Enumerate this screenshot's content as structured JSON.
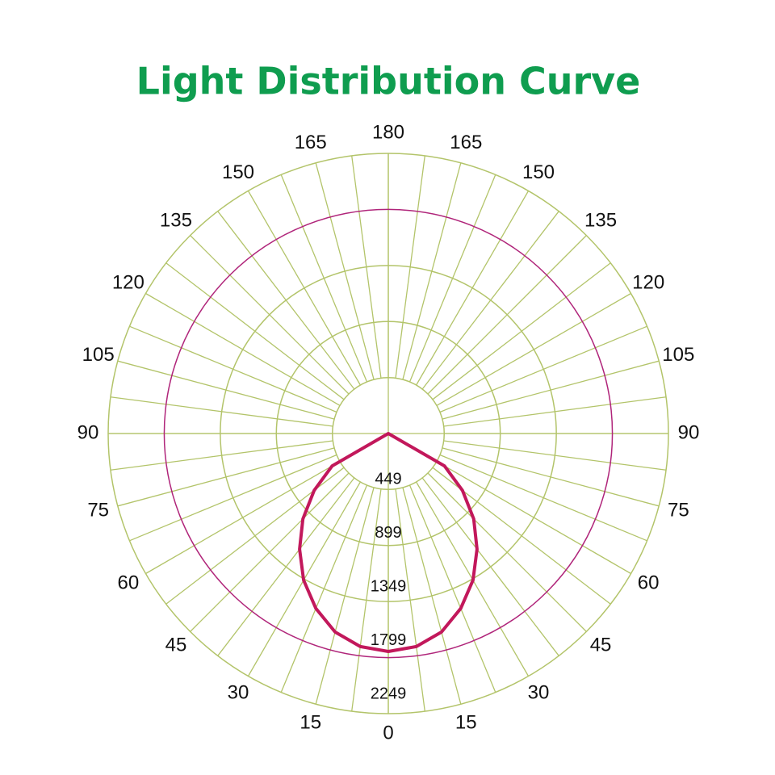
{
  "chart_data": {
    "type": "polar",
    "title": "Light Distribution Curve",
    "angle_ticks": [
      0,
      15,
      30,
      45,
      60,
      75,
      90,
      105,
      120,
      135,
      150,
      165,
      180
    ],
    "rlim": [
      0,
      2249
    ],
    "rticks": [
      449,
      899,
      1349,
      1799,
      2249
    ],
    "ring_colors": [
      "#b3c46a",
      "#b3c46a",
      "#b3c46a",
      "#b0257a",
      "#b3c46a"
    ],
    "grid_color": "#b3c46a",
    "spoke_step": 7.5,
    "series": [
      {
        "color": "#c2185b",
        "x": [
          -90,
          -82.5,
          -75,
          -67.5,
          -60,
          -52.5,
          -45,
          -37.5,
          -30,
          -22.5,
          -15,
          -7.5,
          0,
          7.5,
          15,
          22.5,
          30,
          37.5,
          45,
          52.5,
          60,
          67.5,
          75,
          82.5,
          90
        ],
        "values": [
          0,
          0,
          0,
          0,
          520,
          750,
          970,
          1170,
          1360,
          1520,
          1650,
          1725,
          1750,
          1725,
          1650,
          1520,
          1360,
          1170,
          970,
          750,
          520,
          0,
          0,
          0,
          0
        ]
      }
    ]
  }
}
